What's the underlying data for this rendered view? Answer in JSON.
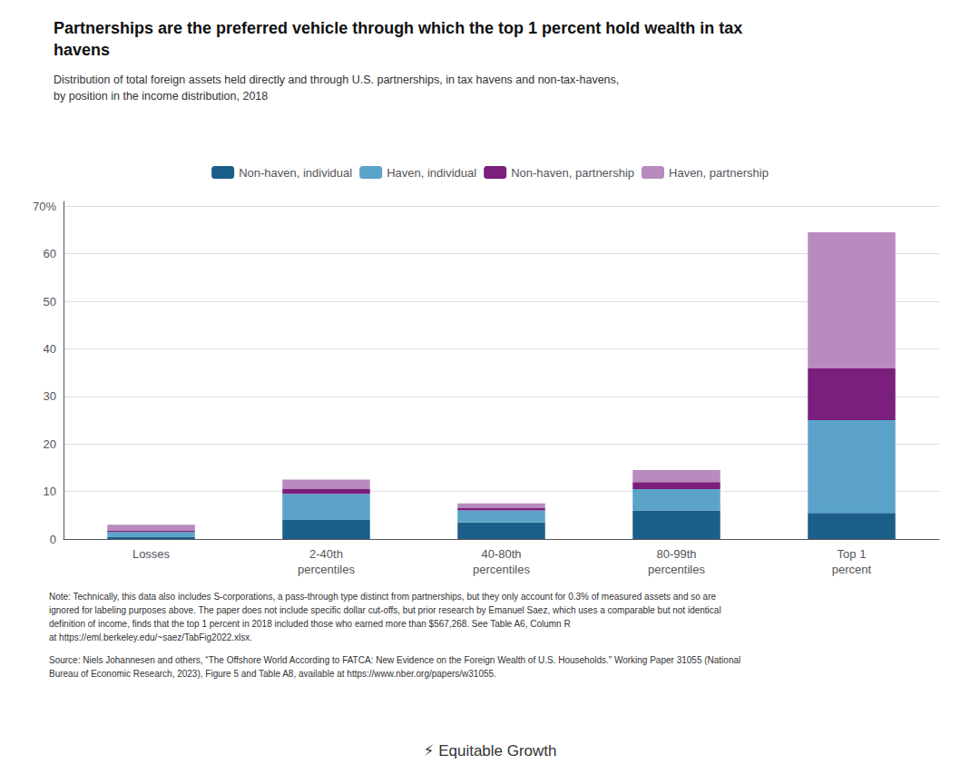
{
  "chart_data": {
    "type": "bar",
    "stacked": true,
    "title": "Partnerships are the preferred vehicle through which the top 1 percent hold wealth in tax\nhavens",
    "subtitle": "Distribution of total foreign assets held directly and through U.S. partnerships, in tax havens and non-tax-havens,\nby position in the income distribution, 2018",
    "categories": [
      "Losses",
      "2-40th\npercentiles",
      "40-80th\npercentiles",
      "80-99th\npercentiles",
      "Top 1\npercent"
    ],
    "series": [
      {
        "name": "Non-haven, individual",
        "color": "#1b5e8a",
        "values": [
          0.5,
          4.0,
          3.5,
          6.0,
          5.5
        ]
      },
      {
        "name": "Haven, individual",
        "color": "#5ba3c9",
        "values": [
          1.0,
          5.5,
          2.5,
          4.5,
          19.5
        ]
      },
      {
        "name": "Non-haven, partnership",
        "color": "#7b1f7c",
        "values": [
          0.3,
          1.0,
          0.5,
          1.5,
          11.0
        ]
      },
      {
        "name": "Haven, partnership",
        "color": "#b88abf",
        "values": [
          1.2,
          2.0,
          1.0,
          2.5,
          28.5
        ]
      }
    ],
    "ylim": [
      0,
      71
    ],
    "yticks": [
      0,
      10,
      20,
      30,
      40,
      50,
      60,
      {
        "value": 70,
        "label": "70%"
      }
    ],
    "grid": true,
    "legend": "top",
    "annotations": [
      "Note: Technically, this data also includes S-corporations, a pass-through type distinct from partnerships, but they only account for 0.3% of measured assets and so are\nignored for labeling purposes above. The paper does not include specific dollar cut-offs, but prior research by Emanuel Saez, which uses a comparable but not identical\ndefinition of income, finds that the top 1 percent in 2018 included those who earned more than $567,268. See Table A6, Column R\nat https://eml.berkeley.edu/~saez/TabFig2022.xlsx.",
      "Source: Niels Johannesen and others, “The Offshore World According to FATCA: New Evidence on the Foreign Wealth of U.S. Households.” Working Paper 31055 (National\nBureau of Economic Research, 2023), Figure 5 and Table A8, available at https://www.nber.org/papers/w31055.",
      "⚡ Equitable Growth"
    ]
  }
}
